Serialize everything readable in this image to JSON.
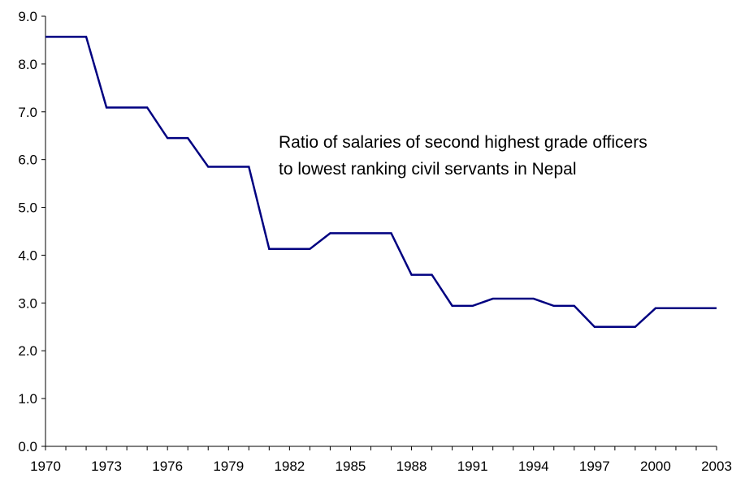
{
  "chart_data": {
    "type": "line",
    "title": "",
    "xlabel": "",
    "ylabel": "",
    "annotation": [
      "Ratio of salaries of second highest grade officers",
      "to lowest ranking civil servants in Nepal"
    ],
    "x": [
      1970,
      1971,
      1972,
      1973,
      1974,
      1975,
      1976,
      1977,
      1978,
      1979,
      1980,
      1981,
      1982,
      1983,
      1984,
      1985,
      1986,
      1987,
      1988,
      1989,
      1990,
      1991,
      1992,
      1993,
      1994,
      1995,
      1996,
      1997,
      1998,
      1999,
      2000,
      2001,
      2002,
      2003
    ],
    "series": [
      {
        "name": "",
        "color": "#000080",
        "values": [
          8.57,
          8.57,
          8.57,
          7.09,
          7.09,
          7.09,
          6.45,
          6.45,
          5.85,
          5.85,
          5.85,
          4.13,
          4.13,
          4.13,
          4.46,
          4.46,
          4.46,
          4.46,
          3.59,
          3.59,
          2.94,
          2.94,
          3.09,
          3.09,
          3.09,
          2.94,
          2.94,
          2.5,
          2.5,
          2.5,
          2.89,
          2.89,
          2.89,
          2.89
        ]
      }
    ],
    "ylim": [
      0,
      9
    ],
    "yticks": [
      "0.0",
      "1.0",
      "2.0",
      "3.0",
      "4.0",
      "5.0",
      "6.0",
      "7.0",
      "8.0",
      "9.0"
    ],
    "xticks": [
      "1970",
      "1973",
      "1976",
      "1979",
      "1982",
      "1985",
      "1988",
      "1991",
      "1994",
      "1997",
      "2000",
      "2003"
    ],
    "grid": false,
    "legend": "none"
  }
}
